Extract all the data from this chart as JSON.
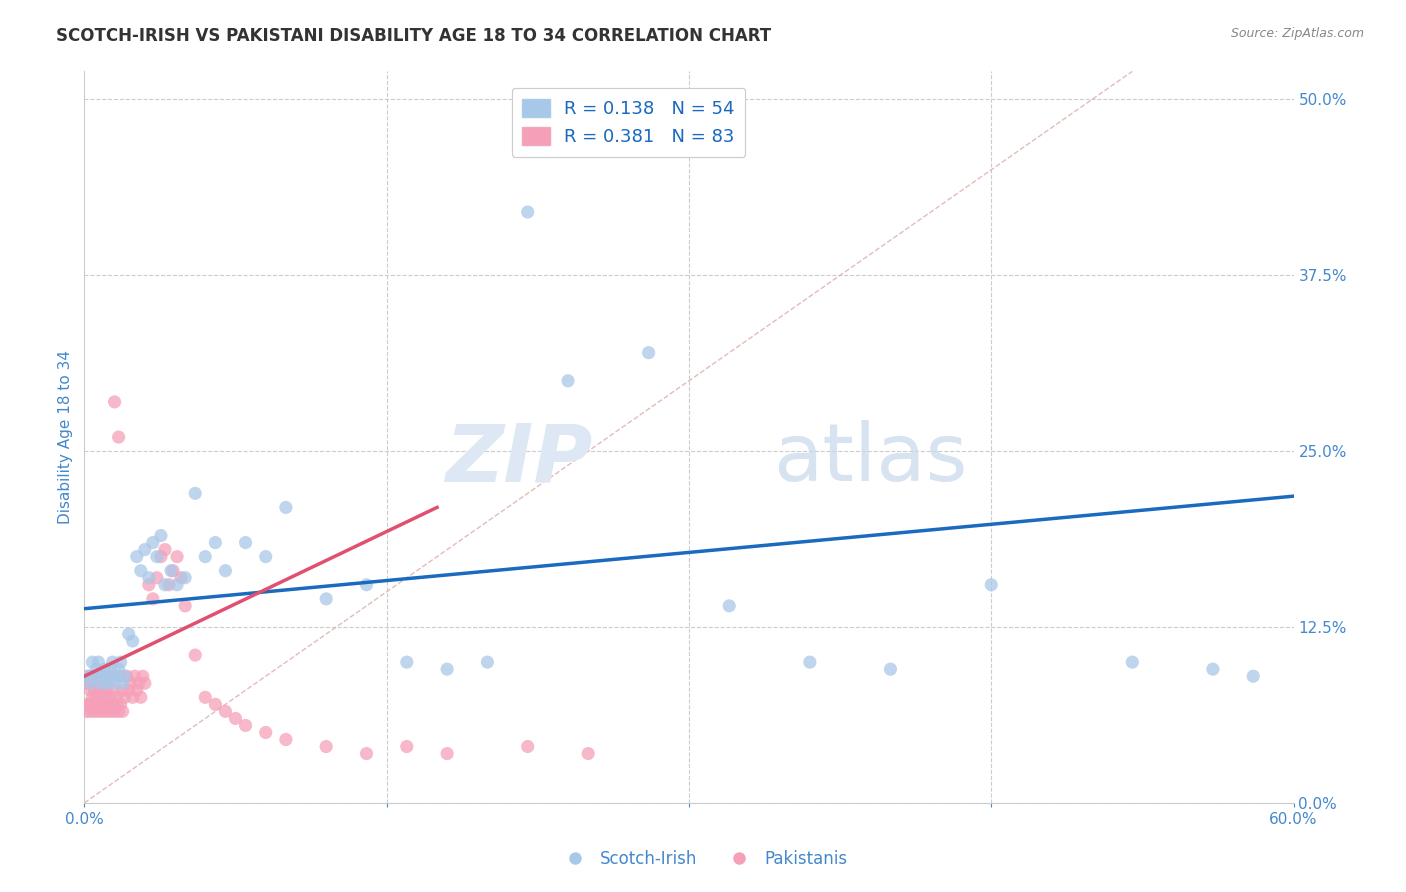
{
  "title": "SCOTCH-IRISH VS PAKISTANI DISABILITY AGE 18 TO 34 CORRELATION CHART",
  "source": "Source: ZipAtlas.com",
  "ylabel": "Disability Age 18 to 34",
  "xmin": 0.0,
  "xmax": 0.6,
  "ymin": 0.0,
  "ymax": 0.52,
  "watermark_zip": "ZIP",
  "watermark_atlas": "atlas",
  "legend_blue_r": "0.138",
  "legend_blue_n": "54",
  "legend_pink_r": "0.381",
  "legend_pink_n": "83",
  "legend_label_blue": "Scotch-Irish",
  "legend_label_pink": "Pakistanis",
  "blue_color": "#a8c8e8",
  "pink_color": "#f5a0b8",
  "blue_line_color": "#1a6abf",
  "pink_line_color": "#e05070",
  "axis_label_color": "#4488cc",
  "title_color": "#333333",
  "source_color": "#888888",
  "grid_color": "#cccccc",
  "diagonal_color": "#ddaaaa",
  "blue_line_x0": 0.0,
  "blue_line_x1": 0.6,
  "blue_line_y0": 0.138,
  "blue_line_y1": 0.218,
  "pink_line_x0": 0.0,
  "pink_line_x1": 0.175,
  "pink_line_y0": 0.09,
  "pink_line_y1": 0.21,
  "blue_x": [
    0.002,
    0.003,
    0.004,
    0.005,
    0.006,
    0.007,
    0.008,
    0.009,
    0.01,
    0.011,
    0.012,
    0.013,
    0.014,
    0.015,
    0.016,
    0.017,
    0.018,
    0.019,
    0.02,
    0.022,
    0.024,
    0.026,
    0.028,
    0.03,
    0.032,
    0.034,
    0.036,
    0.038,
    0.04,
    0.043,
    0.046,
    0.05,
    0.055,
    0.06,
    0.065,
    0.07,
    0.08,
    0.09,
    0.1,
    0.12,
    0.14,
    0.16,
    0.18,
    0.2,
    0.22,
    0.24,
    0.28,
    0.32,
    0.36,
    0.4,
    0.45,
    0.52,
    0.56,
    0.58
  ],
  "blue_y": [
    0.09,
    0.085,
    0.1,
    0.09,
    0.095,
    0.1,
    0.085,
    0.09,
    0.095,
    0.085,
    0.09,
    0.095,
    0.1,
    0.085,
    0.09,
    0.095,
    0.1,
    0.085,
    0.09,
    0.12,
    0.115,
    0.175,
    0.165,
    0.18,
    0.16,
    0.185,
    0.175,
    0.19,
    0.155,
    0.165,
    0.155,
    0.16,
    0.22,
    0.175,
    0.185,
    0.165,
    0.185,
    0.175,
    0.21,
    0.145,
    0.155,
    0.1,
    0.095,
    0.1,
    0.42,
    0.3,
    0.32,
    0.14,
    0.1,
    0.095,
    0.155,
    0.1,
    0.095,
    0.09
  ],
  "pink_x": [
    0.001,
    0.002,
    0.002,
    0.003,
    0.003,
    0.004,
    0.004,
    0.005,
    0.005,
    0.006,
    0.006,
    0.007,
    0.007,
    0.008,
    0.008,
    0.009,
    0.009,
    0.01,
    0.01,
    0.011,
    0.012,
    0.013,
    0.014,
    0.015,
    0.015,
    0.016,
    0.017,
    0.018,
    0.019,
    0.02,
    0.021,
    0.022,
    0.023,
    0.024,
    0.025,
    0.026,
    0.027,
    0.028,
    0.029,
    0.03,
    0.032,
    0.034,
    0.036,
    0.038,
    0.04,
    0.042,
    0.044,
    0.046,
    0.048,
    0.05,
    0.055,
    0.06,
    0.065,
    0.07,
    0.075,
    0.08,
    0.09,
    0.1,
    0.12,
    0.14,
    0.16,
    0.18,
    0.22,
    0.25,
    0.001,
    0.002,
    0.003,
    0.004,
    0.005,
    0.006,
    0.007,
    0.008,
    0.009,
    0.01,
    0.011,
    0.012,
    0.013,
    0.014,
    0.015,
    0.016,
    0.017,
    0.018,
    0.019
  ],
  "pink_y": [
    0.085,
    0.09,
    0.07,
    0.08,
    0.085,
    0.075,
    0.09,
    0.08,
    0.085,
    0.075,
    0.09,
    0.08,
    0.085,
    0.075,
    0.09,
    0.08,
    0.085,
    0.075,
    0.09,
    0.08,
    0.085,
    0.075,
    0.09,
    0.08,
    0.285,
    0.075,
    0.26,
    0.09,
    0.08,
    0.075,
    0.09,
    0.08,
    0.085,
    0.075,
    0.09,
    0.08,
    0.085,
    0.075,
    0.09,
    0.085,
    0.155,
    0.145,
    0.16,
    0.175,
    0.18,
    0.155,
    0.165,
    0.175,
    0.16,
    0.14,
    0.105,
    0.075,
    0.07,
    0.065,
    0.06,
    0.055,
    0.05,
    0.045,
    0.04,
    0.035,
    0.04,
    0.035,
    0.04,
    0.035,
    0.065,
    0.07,
    0.065,
    0.07,
    0.065,
    0.07,
    0.065,
    0.07,
    0.065,
    0.07,
    0.065,
    0.07,
    0.065,
    0.07,
    0.065,
    0.07,
    0.065,
    0.07,
    0.065
  ]
}
